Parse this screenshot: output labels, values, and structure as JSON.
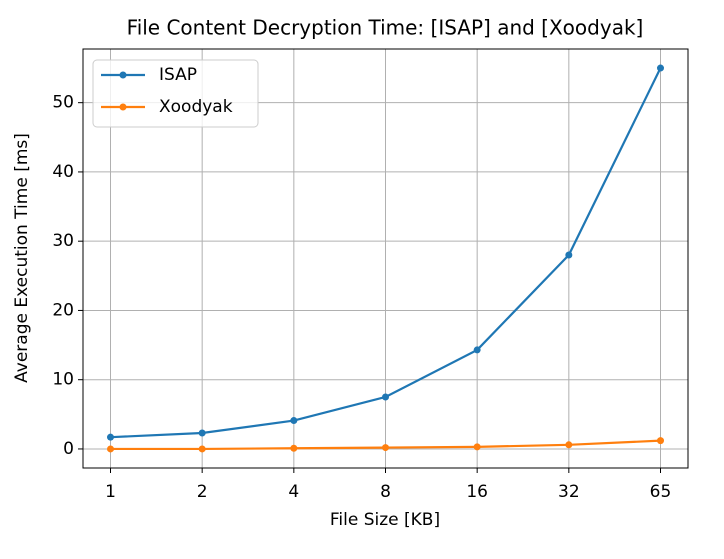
{
  "chart_data": {
    "type": "line",
    "title": "File Content Decryption Time: [ISAP] and [Xoodyak]",
    "x_label": "File Size [KB]",
    "y_label": "Average Execution Time [ms]",
    "categories": [
      "1",
      "2",
      "4",
      "8",
      "16",
      "32",
      "65"
    ],
    "series": [
      {
        "name": "ISAP",
        "color": "#1f77b4",
        "values": [
          1.7,
          2.3,
          4.1,
          7.5,
          14.3,
          28.0,
          55.0
        ]
      },
      {
        "name": "Xoodyak",
        "color": "#ff7f0e",
        "values": [
          0.0,
          0.0,
          0.1,
          0.2,
          0.3,
          0.6,
          1.2
        ]
      }
    ],
    "ylim": [
      -2.75,
      57.75
    ],
    "yticks": [
      0,
      10,
      20,
      30,
      40,
      50
    ],
    "grid": true,
    "legend": "upper left"
  }
}
